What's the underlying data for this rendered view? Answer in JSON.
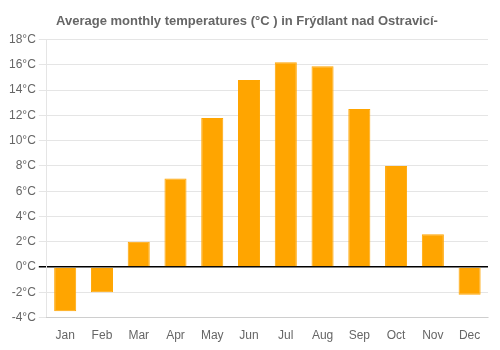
{
  "chart_data": {
    "type": "bar",
    "title": "Average monthly temperatures (°C ) in Frýdlant nad Ostravicí-",
    "categories": [
      "Jan",
      "Feb",
      "Mar",
      "Apr",
      "May",
      "Jun",
      "Jul",
      "Aug",
      "Sep",
      "Oct",
      "Nov",
      "Dec"
    ],
    "values": [
      -3.5,
      -2.0,
      2.0,
      7.0,
      11.8,
      14.8,
      16.2,
      15.9,
      12.5,
      8.0,
      2.6,
      -2.2
    ],
    "color": "#FFA500",
    "ylim": [
      -4,
      18
    ],
    "yticks": [
      {
        "value": -4,
        "label": "-4°C"
      },
      {
        "value": -2,
        "label": "-2°C"
      },
      {
        "value": 0,
        "label": "0°C"
      },
      {
        "value": 2,
        "label": "2°C"
      },
      {
        "value": 4,
        "label": "4°C"
      },
      {
        "value": 6,
        "label": "6°C"
      },
      {
        "value": 8,
        "label": "8°C"
      },
      {
        "value": 10,
        "label": "10°C"
      },
      {
        "value": 12,
        "label": "12°C"
      },
      {
        "value": 14,
        "label": "14°C"
      },
      {
        "value": 16,
        "label": "16°C"
      },
      {
        "value": 18,
        "label": "18°C"
      }
    ],
    "grid": true
  }
}
